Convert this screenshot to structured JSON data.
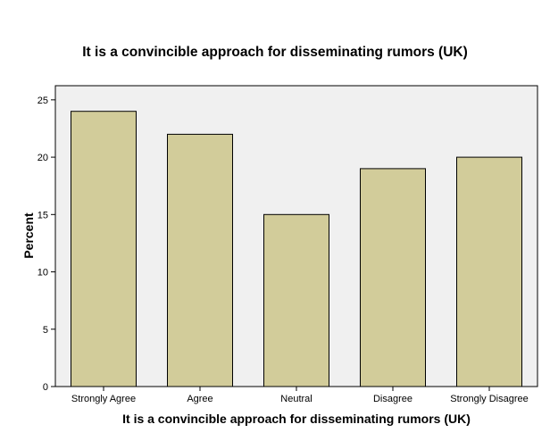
{
  "chart_data": {
    "type": "bar",
    "title": "It is a convincible approach for disseminating rumors (UK)",
    "xlabel": "It is a convincible approach for disseminating rumors (UK)",
    "ylabel": "Percent",
    "categories": [
      "Strongly Agree",
      "Agree",
      "Neutral",
      "Disagree",
      "Strongly Disagree"
    ],
    "values": [
      24,
      22,
      15,
      19,
      20
    ],
    "ylim": [
      0,
      26
    ],
    "yticks": [
      0,
      5,
      10,
      15,
      20,
      25
    ],
    "ytick_labels": [
      "0",
      "5",
      "10",
      "15",
      "20",
      "25"
    ],
    "grid": false,
    "legend": "none",
    "colors": {
      "bar_fill": "#D2CC9A",
      "bar_stroke": "#000000",
      "plot_background": "#F0F0F0",
      "page_background": "#FFFFFF"
    }
  }
}
